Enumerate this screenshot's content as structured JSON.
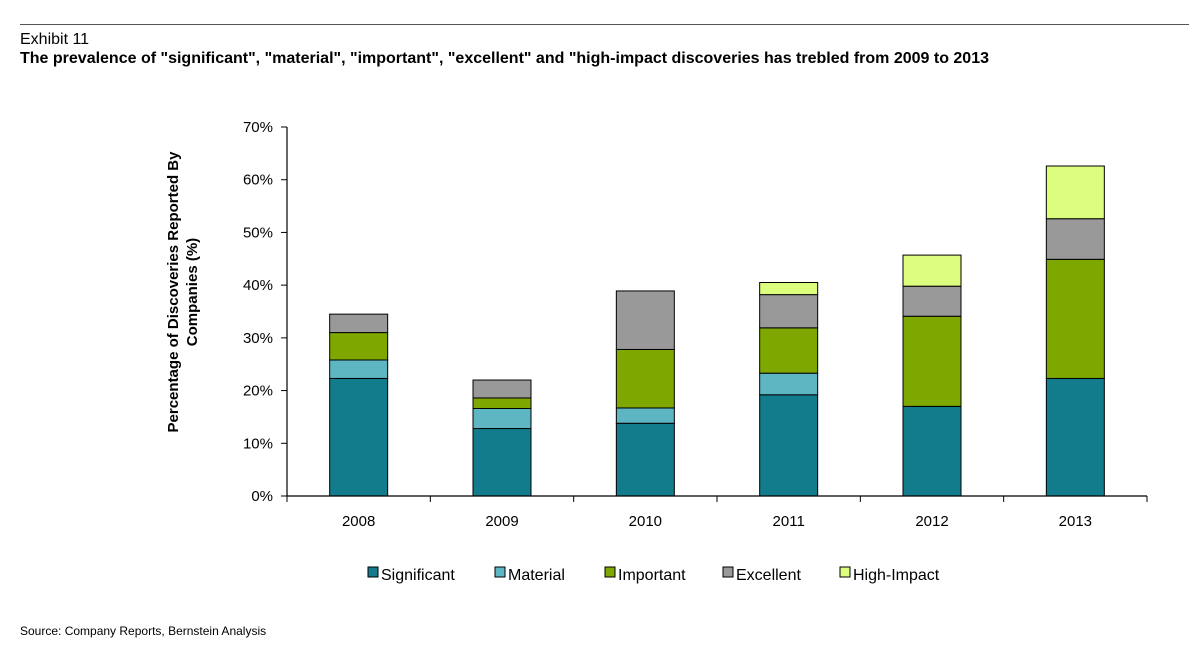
{
  "header": {
    "exhibit": "Exhibit 11",
    "title": "The prevalence of \"significant\", \"material\", \"important\", \"excellent\" and \"high-impact discoveries has trebled from 2009 to 2013"
  },
  "footer": {
    "source": "Source:  Company Reports, Bernstein Analysis"
  },
  "chart_data": {
    "type": "bar",
    "stacked": true,
    "title": "The prevalence of \"significant\", \"material\", \"important\", \"excellent\" and \"high-impact discoveries has trebled from 2009 to 2013",
    "xlabel": "",
    "ylabel_lines": [
      "Percentage of Discoveries Reported By",
      "Companies (%)"
    ],
    "ylim": [
      0,
      70
    ],
    "yticks": [
      0,
      10,
      20,
      30,
      40,
      50,
      60,
      70
    ],
    "ytick_labels": [
      "0%",
      "10%",
      "20%",
      "30%",
      "40%",
      "50%",
      "60%",
      "70%"
    ],
    "grid": false,
    "legend_position": "bottom",
    "categories": [
      "2008",
      "2009",
      "2010",
      "2011",
      "2012",
      "2013"
    ],
    "series": [
      {
        "name": "Significant",
        "color": "#127c8c",
        "values": [
          22.3,
          12.8,
          13.8,
          19.2,
          17.0,
          22.3
        ]
      },
      {
        "name": "Material",
        "color": "#5fb6c3",
        "values": [
          3.5,
          3.8,
          2.9,
          4.1,
          0,
          0
        ]
      },
      {
        "name": "Important",
        "color": "#7ea700",
        "values": [
          5.2,
          2.0,
          11.1,
          8.6,
          17.1,
          22.6
        ]
      },
      {
        "name": "Excellent",
        "color": "#999999",
        "values": [
          3.5,
          3.4,
          11.1,
          6.3,
          5.7,
          7.7
        ]
      },
      {
        "name": "High-Impact",
        "color": "#dcfd7e",
        "values": [
          0,
          0,
          0,
          2.3,
          5.9,
          10.0
        ]
      }
    ]
  }
}
